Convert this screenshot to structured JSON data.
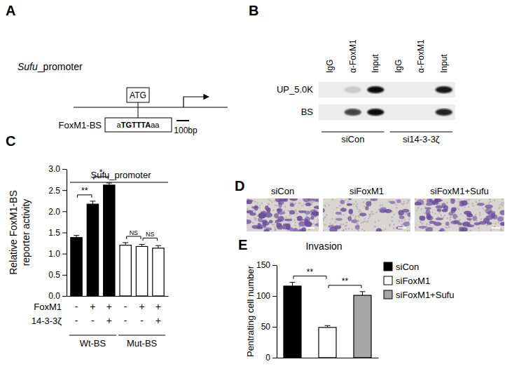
{
  "panel_a": {
    "label": "A",
    "promoter": {
      "gene": "Sufu",
      "suffix": "_promoter"
    },
    "start_codon": "ATG",
    "site_label": "FoxM1-BS",
    "site_sequence": [
      "a",
      "TGTTTA",
      "aa"
    ],
    "scale_bar": "100bp"
  },
  "panel_b": {
    "label": "B",
    "lanes": [
      "IgG",
      "α-FoxM1",
      "Input",
      "IgG",
      "α-FoxM1",
      "Input"
    ],
    "rows": [
      "UP_5.0K",
      "BS"
    ],
    "conditions": [
      {
        "label": "siCon",
        "lanes": 3
      },
      {
        "label": "si14-3-3ζ",
        "lanes": 3
      }
    ]
  },
  "panel_d": {
    "label": "D",
    "images": [
      "siCon",
      "siFoxM1",
      "siFoxM1+Sufu"
    ]
  },
  "chart_data": [
    {
      "panel_label": "C",
      "type": "bar",
      "title": "Sufu_promoter",
      "ylabel": [
        "Relative FoxM1-BS",
        "reporter activity"
      ],
      "categories": [
        null,
        null,
        null,
        null,
        null,
        null
      ],
      "values": [
        1.38,
        2.17,
        2.62,
        1.2,
        1.17,
        1.13
      ],
      "errors": [
        0.05,
        0.07,
        0.05,
        0.06,
        0.05,
        0.06
      ],
      "colors": [
        "#000000",
        "#000000",
        "#000000",
        "#ffffff",
        "#ffffff",
        "#ffffff"
      ],
      "ylim": [
        0,
        3
      ],
      "yticks": [
        {
          "value": 0,
          "label": "0.0"
        },
        {
          "value": 0.5,
          "label": "0.5"
        },
        {
          "value": 1,
          "label": "1.0"
        },
        {
          "value": 1.5,
          "label": "1.5"
        },
        {
          "value": 2,
          "label": "2.0"
        },
        {
          "value": 2.5,
          "label": "2.5"
        },
        {
          "value": 3,
          "label": "3.0"
        }
      ],
      "annotations": [
        {
          "label": "**",
          "from": 0,
          "to": 1
        },
        {
          "label": "*",
          "from": 1,
          "to": 2
        },
        {
          "label": "NS",
          "from": 3,
          "to": 4
        },
        {
          "label": "NS",
          "from": 4,
          "to": 5
        }
      ],
      "condition_rows": [
        {
          "label": "FoxM1",
          "values": [
            "-",
            "+",
            "+",
            "-",
            "+",
            "+"
          ]
        },
        {
          "label": "14-3-3ζ",
          "values": [
            "-",
            "-",
            "+",
            "-",
            "-",
            "+"
          ]
        }
      ],
      "groups": [
        {
          "label": "Wt-BS",
          "size": 3
        },
        {
          "label": "Mut-BS",
          "size": 3
        }
      ]
    },
    {
      "panel_label": "E",
      "type": "bar",
      "title": "Invasion",
      "ylabel": "Pentrating cell number",
      "categories": [
        null
      ],
      "series": [
        {
          "name": "siCon",
          "color": "#000000",
          "values": [
            116
          ],
          "errors": [
            6
          ]
        },
        {
          "name": "siFoxM1",
          "color": "#ffffff",
          "values": [
            49
          ],
          "errors": [
            3
          ]
        },
        {
          "name": "siFoxM1+Sufu",
          "color": "#a6a6a6",
          "values": [
            101
          ],
          "errors": [
            6
          ]
        }
      ],
      "ylim": [
        0,
        150
      ],
      "yticks": [
        0,
        50,
        100,
        150
      ],
      "legend": "right",
      "annotations": [
        {
          "label": "**",
          "from": 0,
          "to": 1
        },
        {
          "label": "**",
          "from": 1,
          "to": 2
        }
      ]
    }
  ]
}
